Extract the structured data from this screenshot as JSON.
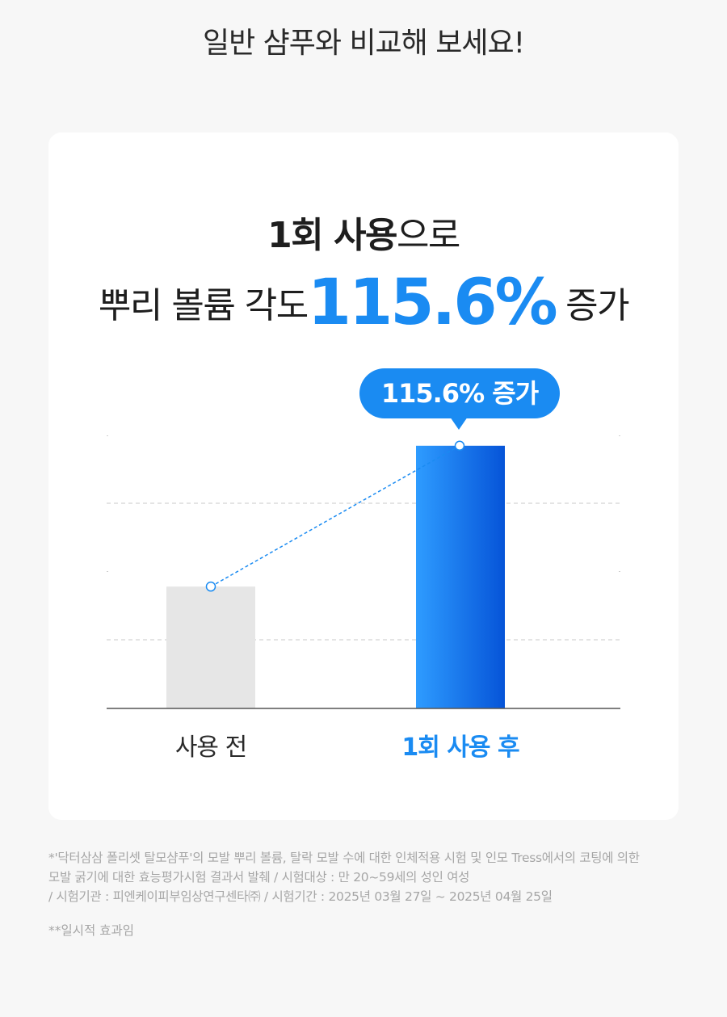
{
  "top_title": "일반 샴푸와 비교해 보세요!",
  "headline": {
    "line1_bold": "1회 사용",
    "line1_rest": "으로",
    "line2_prefix": "뿌리 볼륨 각도",
    "line2_value": "115.6%",
    "line2_suffix": "증가"
  },
  "bubble_label": "115.6% 증가",
  "chart_data": {
    "type": "bar",
    "categories": [
      "사용 전",
      "1회 사용 후"
    ],
    "values": [
      100,
      215.6
    ],
    "ylim": [
      0,
      240
    ],
    "grid": true,
    "colors": {
      "before": "#e6e6e6",
      "after_start": "#2e9cff",
      "after_end": "#0654d8",
      "accent": "#1a8bf2"
    }
  },
  "footnotes": {
    "line1": "*'닥터삼삼 폴리셋 탈모샴푸'의 모발 뿌리 볼륨, 탈락 모발 수에 대한 인체적용 시험 및 인모 Tress에서의 코팅에 의한",
    "line2": "모발 굵기에 대한 효능평가시험 결과서 발췌 / 시험대상 : 만 20~59세의 성인 여성",
    "line3": "/ 시험기관 : 피엔케이피부임상연구센타㈜  / 시험기간 :  2025년 03월 27일 ~ 2025년 04월 25일",
    "line4": "**일시적 효과임"
  }
}
